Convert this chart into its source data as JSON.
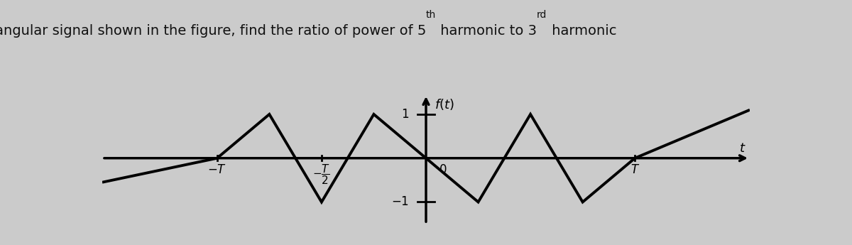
{
  "background_color": "#cbcbcb",
  "signal_color": "#000000",
  "axis_color": "#000000",
  "line_width": 2.8,
  "xlim": [
    -1.55,
    1.55
  ],
  "ylim": [
    -1.7,
    1.65
  ],
  "signal_x": [
    -1.55,
    -1.0,
    -0.75,
    -0.5,
    -0.25,
    0.0,
    0.25,
    0.5,
    0.75,
    1.0,
    1.55
  ],
  "signal_y": [
    -0.55,
    0.0,
    1.0,
    -1.0,
    1.0,
    0.0,
    -1.0,
    1.0,
    -1.0,
    0.0,
    1.1
  ],
  "title_fontsize": 14,
  "sup_fontsize": 10,
  "axis_label_fontsize": 13,
  "tick_fontsize": 12
}
